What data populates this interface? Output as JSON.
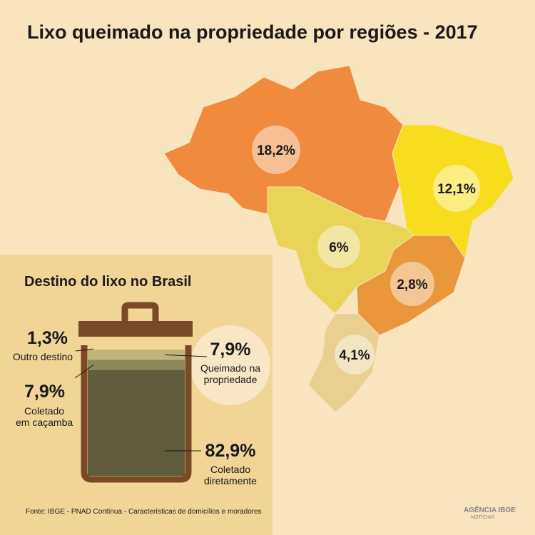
{
  "title": "Lixo queimado na propriedade por regiões - 2017",
  "source": "Fonte: IBGE - PNAD Contínua - Características de domicílios e moradores",
  "logo": {
    "name": "AGÊNCIA IBGE",
    "sub": "NOTÍCIAS"
  },
  "chart_data": [
    {
      "type": "map",
      "values": [
        18.2,
        12.1,
        6,
        2.8,
        4.1
      ],
      "value_labels": [
        "18,2%",
        "12,1%",
        "6%",
        "2,8%",
        "4,1%"
      ],
      "colors": [
        "#f08a3c",
        "#f8dc1e",
        "#e8d456",
        "#ea973c",
        "#e8d090"
      ]
    },
    {
      "type": "stacked-bar",
      "title": "Destino do lixo no Brasil",
      "series": [
        {
          "name": "Outro destino",
          "color": "#ebd98c",
          "values": [
            1.3
          ],
          "value_labels": [
            "1,3%"
          ]
        },
        {
          "name": "Queimado na\npropriedade",
          "color": "#bfb27a",
          "values": [
            7.9
          ],
          "value_labels": [
            "7,9%"
          ]
        },
        {
          "name": "Coletado\nem caçamba",
          "color": "#8e8858",
          "values": [
            7.9
          ],
          "value_labels": [
            "7,9%"
          ]
        },
        {
          "name": "Coletado\ndiretamente",
          "color": "#615c3b",
          "values": [
            82.9
          ],
          "value_labels": [
            "82,9%"
          ]
        }
      ]
    }
  ]
}
